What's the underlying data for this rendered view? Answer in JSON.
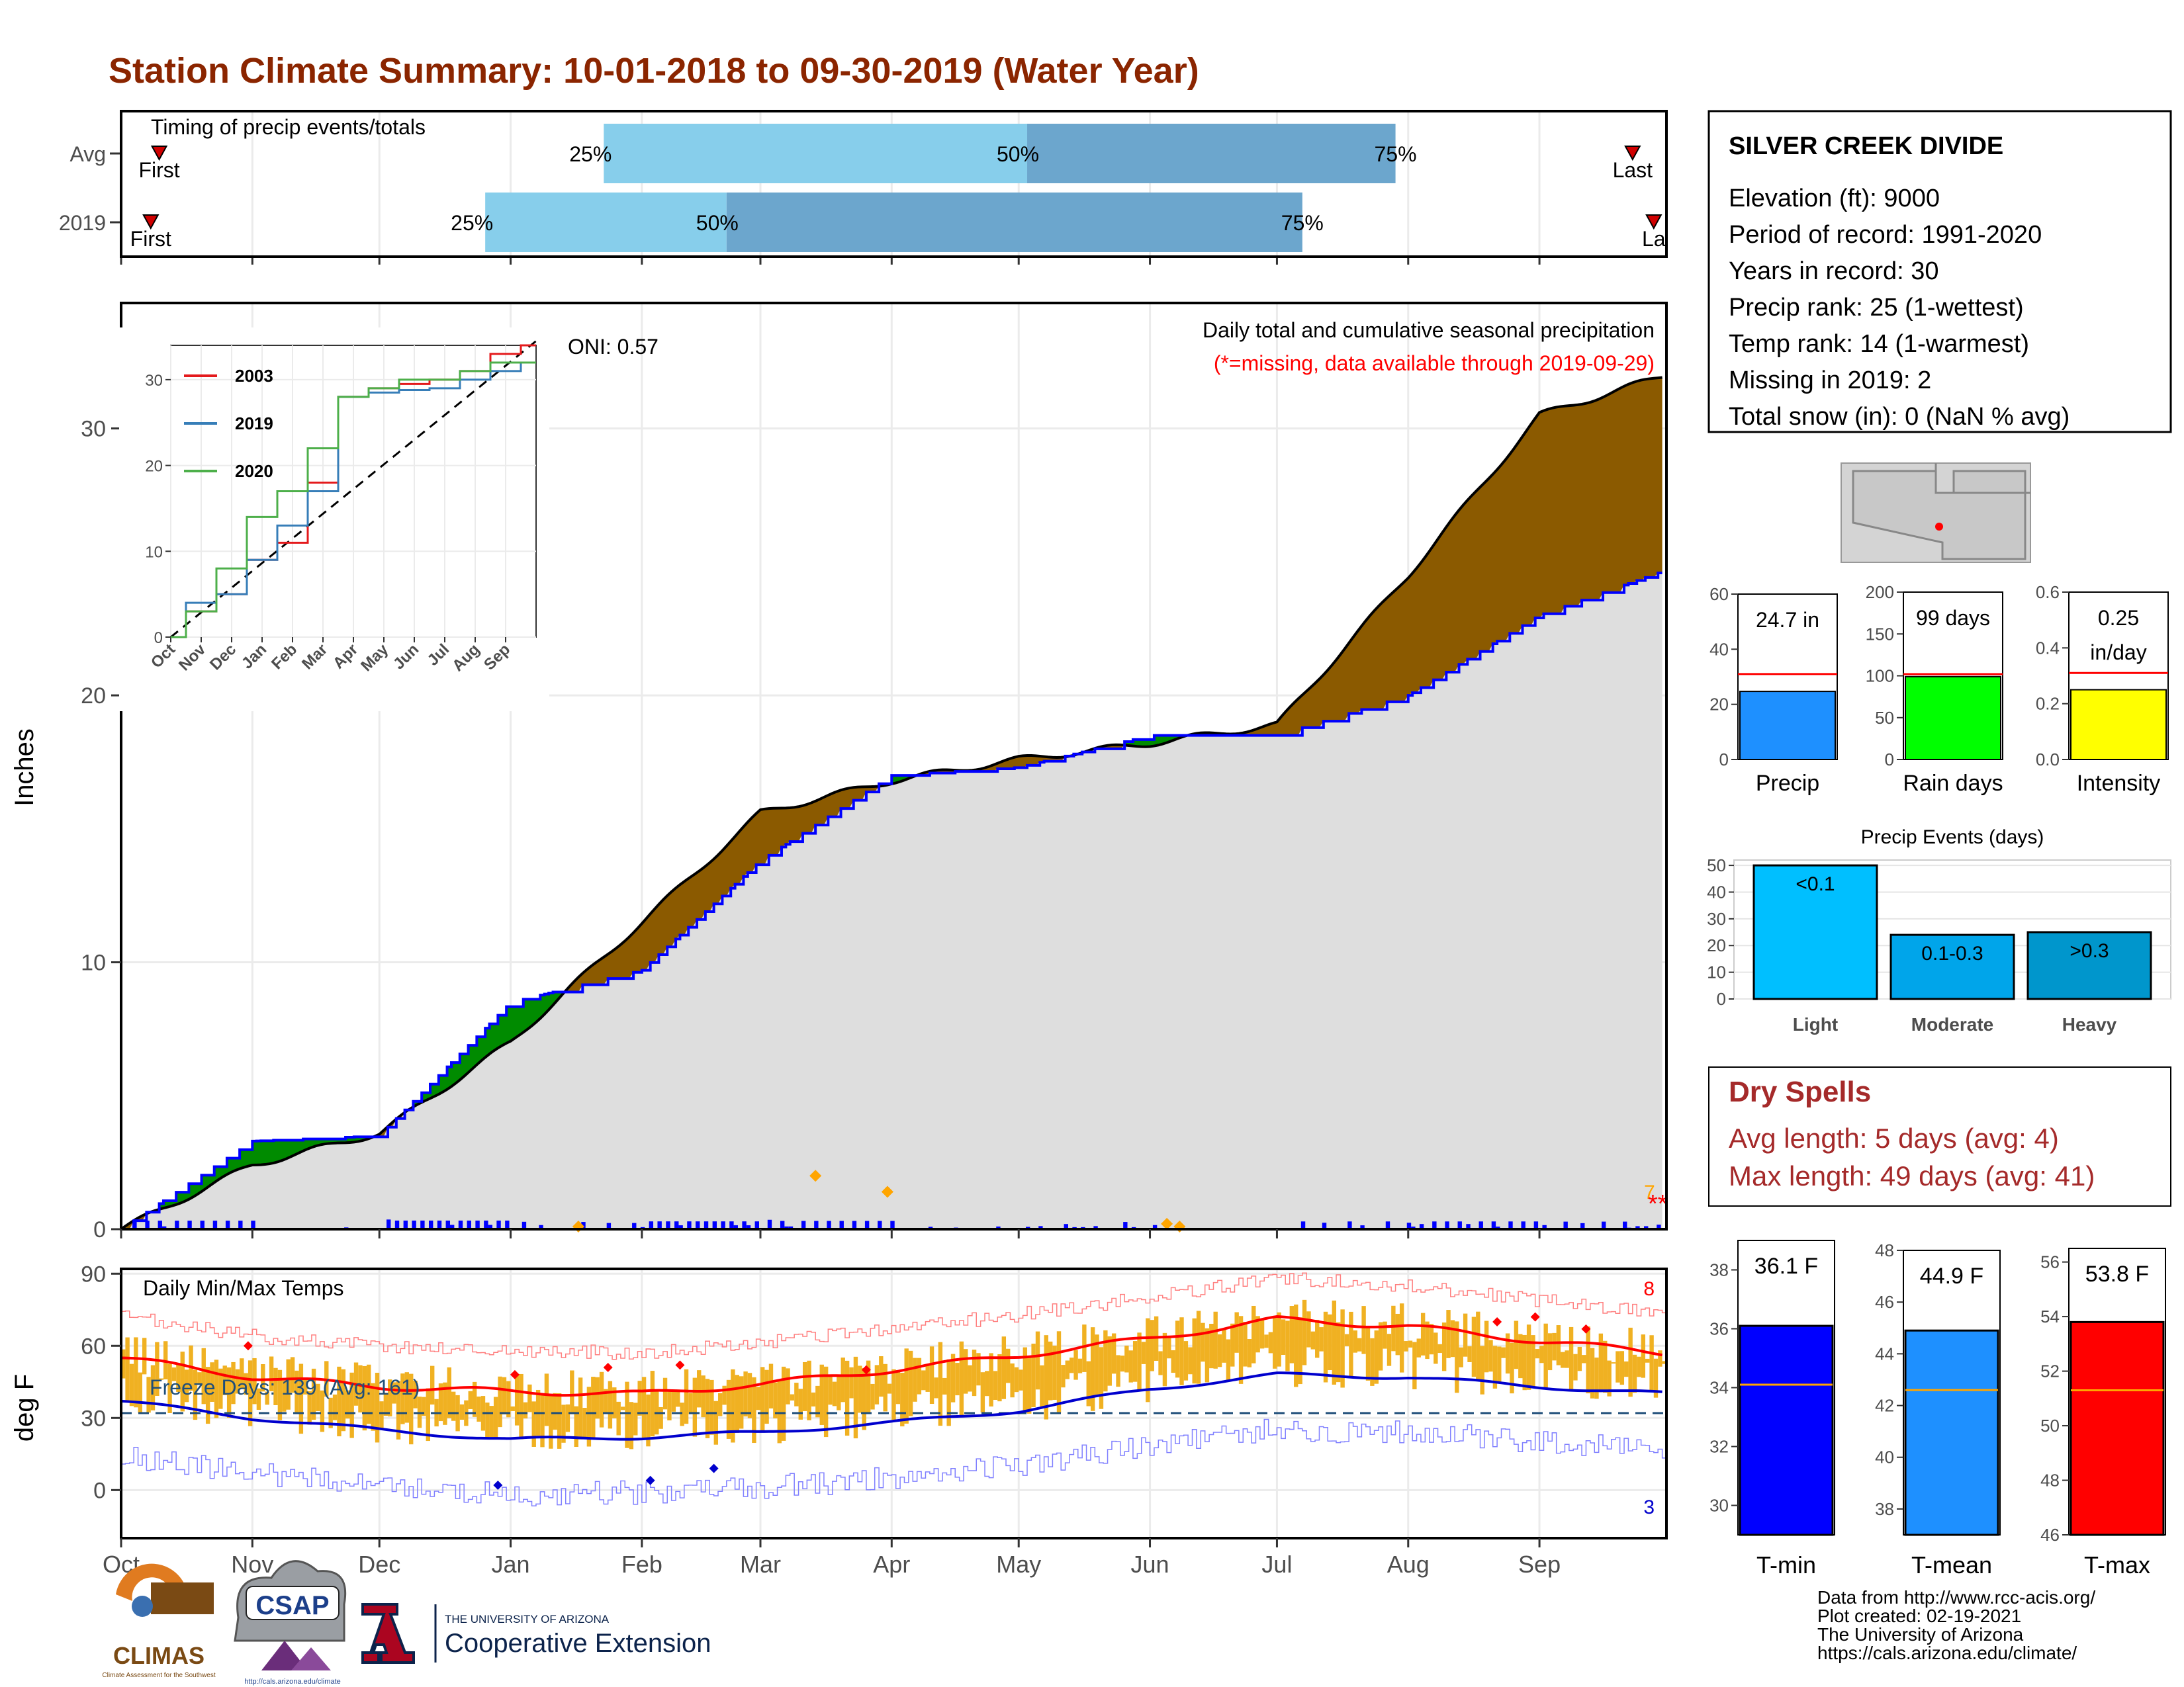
{
  "title": "Station Climate Summary: 10-01-2018 to 09-30-2019 (Water Year)",
  "colors": {
    "title": "#8B2500",
    "lightblue": "#87CEEB",
    "steelblue": "#6CA6CD",
    "brown": "#8B5A00",
    "green": "#008B00",
    "gray": "#DEDEDE",
    "dailybar": "#0000FF",
    "orange": "#FFA500",
    "tempbar": "#F0B122",
    "red": "#FF0000",
    "blue": "#0000CD",
    "dryspell": "#A52A2A"
  },
  "timing": {
    "label": "Timing of precip events/totals",
    "rows": [
      {
        "name": "Avg",
        "first_day": 9,
        "p25": 114,
        "p50": 214,
        "p75": 301,
        "last_day": 357,
        "first_label": "First",
        "last_label": "Last",
        "p25_label": "25%",
        "p50_label": "50%",
        "p75_label": "75%"
      },
      {
        "name": "2019",
        "first_day": 7,
        "p25": 86,
        "p50": 143,
        "p75": 279,
        "last_day": 362,
        "first_label": "First",
        "last_label": "La",
        "p25_label": "25%",
        "p50_label": "50%",
        "p75_label": "75%"
      }
    ]
  },
  "info": {
    "station": "SILVER CREEK DIVIDE",
    "lines": [
      "Elevation (ft): 9000",
      "Period of record: 1991-2020",
      "Years in record: 30",
      "Precip rank: 25 (1-wettest)",
      "Temp rank: 14 (1-warmest)",
      "Missing in 2019: 2",
      "Total snow (in): 0 (NaN % avg)"
    ]
  },
  "precip_panel": {
    "ylabel": "Inches",
    "oni_label": "ONI: 0.57",
    "caption": "Daily total and cumulative seasonal precipitation",
    "missing_note": "(*=missing, data available through 2019-09-29)",
    "edge_label": "7",
    "missing_marks": "**",
    "yticks": [
      0,
      10,
      20,
      30
    ]
  },
  "inset": {
    "legend": [
      "2003",
      "2019",
      "2020"
    ],
    "legend_colors": [
      "#E41A1C",
      "#377EB8",
      "#4DAF4A"
    ],
    "yticks": [
      0,
      10,
      20,
      30
    ],
    "xticks": [
      "Oct",
      "Nov",
      "Dec",
      "Jan",
      "Feb",
      "Mar",
      "Apr",
      "May",
      "Jun",
      "Jul",
      "Aug",
      "Sep"
    ]
  },
  "bars": {
    "precip": {
      "label": "Precip",
      "value_label": "24.7 in",
      "value": 24.7,
      "avg": 31,
      "color": "#1E90FF",
      "yticks": [
        "0",
        "20",
        "40",
        "60"
      ],
      "ymax": 60
    },
    "raindays": {
      "label": "Rain days",
      "value_label": "99 days",
      "value": 99,
      "avg": 102,
      "color": "#00FF00",
      "yticks": [
        "0",
        "50",
        "100",
        "150",
        "200"
      ],
      "ymax": 200
    },
    "intensity": {
      "label": "Intensity",
      "value_label": "0.25",
      "value_label2": "in/day",
      "value": 0.25,
      "avg": 0.31,
      "color": "#FFFF00",
      "yticks": [
        "0.0",
        "0.2",
        "0.4",
        "0.6"
      ],
      "ymax": 0.6
    }
  },
  "events": {
    "title": "Precip Events (days)",
    "categories": [
      "Light",
      "Moderate",
      "Heavy"
    ],
    "bar_labels": [
      "<0.1",
      "0.1-0.3",
      ">0.3"
    ],
    "values": [
      50,
      24,
      25
    ],
    "colors": [
      "#00BFFF",
      "#00A5EA",
      "#0096CC"
    ],
    "yticks": [
      "0",
      "10",
      "20",
      "30",
      "40",
      "50"
    ]
  },
  "dry_spells": {
    "title": "Dry Spells",
    "avg_line": "Avg length: 5 days (avg: 4)",
    "max_line": "Max length: 49 days (avg: 41)"
  },
  "temp_panel": {
    "ylabel": "deg F",
    "label": "Daily Min/Max Temps",
    "freeze_label": "Freeze Days: 139 (Avg: 161)",
    "max_count": "8",
    "min_count": "3",
    "yticks": [
      0,
      30,
      60,
      90
    ],
    "freeze_line": 32
  },
  "months": [
    "Oct",
    "Nov",
    "Dec",
    "Jan",
    "Feb",
    "Mar",
    "Apr",
    "May",
    "Jun",
    "Jul",
    "Aug",
    "Sep"
  ],
  "tbars": {
    "tmin": {
      "label": "T-min",
      "value_label": "36.1 F",
      "value": 36.1,
      "avg": 34.1,
      "color": "#0000FF",
      "yticks": [
        "30",
        "32",
        "34",
        "36",
        "38"
      ],
      "ymin": 29,
      "ymax": 39
    },
    "tmean": {
      "label": "T-mean",
      "value_label": "44.9 F",
      "value": 44.9,
      "avg": 42.6,
      "color": "#1E90FF",
      "yticks": [
        "38",
        "40",
        "42",
        "44",
        "46",
        "48"
      ],
      "ymin": 37,
      "ymax": 48
    },
    "tmax": {
      "label": "T-max",
      "value_label": "53.8 F",
      "value": 53.8,
      "avg": 51.3,
      "color": "#FF0000",
      "yticks": [
        "46",
        "48",
        "50",
        "52",
        "54",
        "56"
      ],
      "ymin": 46,
      "ymax": 56.5
    }
  },
  "logos": {
    "climas": "CLIMAS",
    "climas_sub": "Climate Assessment for the Southwest",
    "csap": "CSAP",
    "csap_url": "http://cals.arizona.edu/climate",
    "ua_small": "THE UNIVERSITY OF ARIZONA",
    "coop": "Cooperative Extension"
  },
  "credits": [
    "Data from http://www.rcc-acis.org/",
    "Plot created: 02-19-2021",
    "The University of Arizona",
    "https://cals.arizona.edu/climate/"
  ],
  "chart_data": [
    {
      "type": "line",
      "title": "Daily total and cumulative seasonal precipitation",
      "ylabel": "Inches",
      "ylim": [
        0,
        34.7
      ],
      "x": [
        "Oct",
        "Nov",
        "Dec",
        "Jan",
        "Feb",
        "Mar",
        "Apr",
        "May",
        "Jun",
        "Jul",
        "Aug",
        "Sep"
      ],
      "series": [
        {
          "values": [
            0,
            2.4,
            3.6,
            7.0,
            11.5,
            15.6,
            16.8,
            17.6,
            18.2,
            18.9,
            24.5,
            30.5
          ]
        },
        {
          "values": [
            0,
            3.3,
            3.5,
            8.5,
            9.7,
            13.8,
            17.0,
            17.3,
            18.5,
            18.5,
            20.0,
            23.0
          ]
        }
      ]
    },
    {
      "type": "line",
      "title": "Daily Min/Max Temps",
      "ylabel": "deg F",
      "ylim": [
        -20,
        92
      ],
      "x": [
        "Oct",
        "Nov",
        "Dec",
        "Jan",
        "Feb",
        "Mar",
        "Apr",
        "May",
        "Jun",
        "Jul",
        "Aug",
        "Sep"
      ],
      "series": [
        {
          "values": [
            55,
            47,
            43,
            41,
            40,
            44,
            50,
            56,
            63,
            71,
            68,
            62
          ]
        },
        {
          "values": [
            37,
            30,
            25,
            21,
            22,
            24,
            28,
            33,
            42,
            48,
            47,
            43
          ]
        }
      ]
    },
    {
      "type": "bar",
      "title": "Precip Events (days)",
      "categories": [
        "Light",
        "Moderate",
        "Heavy"
      ],
      "values": [
        50,
        24,
        25
      ]
    }
  ]
}
